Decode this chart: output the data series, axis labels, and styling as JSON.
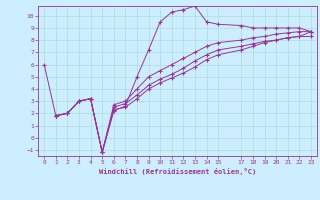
{
  "background_color": "#cceeff",
  "grid_color": "#aadddd",
  "line_color": "#993399",
  "xlabel": "Windchill (Refroidissement éolien,°C)",
  "xlim": [
    -0.5,
    23.5
  ],
  "ylim": [
    -1.5,
    10.8
  ],
  "yticks": [
    -1,
    0,
    1,
    2,
    3,
    4,
    5,
    6,
    7,
    8,
    9,
    10
  ],
  "xticks": [
    0,
    1,
    2,
    3,
    4,
    5,
    6,
    7,
    8,
    9,
    10,
    11,
    12,
    13,
    14,
    15,
    17,
    18,
    19,
    20,
    21,
    22,
    23
  ],
  "line1_x": [
    0,
    1,
    2,
    3,
    4,
    5,
    6,
    7,
    8,
    9,
    10,
    11,
    12,
    13,
    14,
    15,
    17,
    18,
    19,
    20,
    21,
    22,
    23
  ],
  "line1_y": [
    6.0,
    1.8,
    2.0,
    3.0,
    3.2,
    -1.2,
    2.2,
    2.6,
    5.0,
    7.2,
    9.5,
    10.3,
    10.5,
    10.8,
    9.5,
    9.3,
    9.2,
    9.0,
    9.0,
    9.0,
    9.0,
    9.0,
    8.7
  ],
  "line2_x": [
    1,
    2,
    3,
    4,
    5,
    6,
    7,
    8,
    9,
    10,
    11,
    12,
    13,
    14,
    15,
    17,
    18,
    19,
    20,
    21,
    22,
    23
  ],
  "line2_y": [
    1.8,
    2.0,
    3.0,
    3.2,
    -1.2,
    2.7,
    3.0,
    4.0,
    5.0,
    5.5,
    6.0,
    6.5,
    7.0,
    7.5,
    7.8,
    8.0,
    8.2,
    8.3,
    8.5,
    8.6,
    8.7,
    8.7
  ],
  "line3_x": [
    1,
    2,
    3,
    4,
    5,
    6,
    7,
    8,
    9,
    10,
    11,
    12,
    13,
    14,
    15,
    17,
    18,
    19,
    20,
    21,
    22,
    23
  ],
  "line3_y": [
    1.8,
    2.0,
    3.0,
    3.2,
    -1.2,
    2.5,
    2.8,
    3.5,
    4.3,
    4.8,
    5.2,
    5.7,
    6.3,
    6.8,
    7.2,
    7.5,
    7.7,
    7.9,
    8.0,
    8.2,
    8.3,
    8.3
  ],
  "line4_x": [
    1,
    2,
    3,
    4,
    5,
    6,
    7,
    8,
    9,
    10,
    11,
    12,
    13,
    14,
    15,
    17,
    18,
    19,
    20,
    21,
    22,
    23
  ],
  "line4_y": [
    1.8,
    2.0,
    3.0,
    3.2,
    -1.2,
    2.3,
    2.5,
    3.2,
    4.0,
    4.5,
    4.9,
    5.3,
    5.8,
    6.4,
    6.8,
    7.2,
    7.5,
    7.8,
    8.0,
    8.2,
    8.3,
    8.7
  ]
}
